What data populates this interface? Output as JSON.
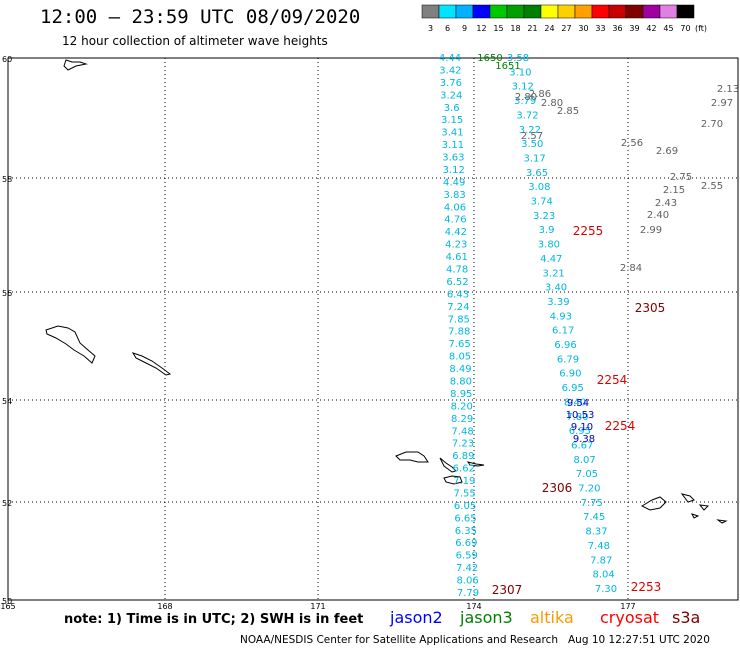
{
  "title": "12:00 – 23:59 UTC 08/09/2020",
  "subtitle": "12 hour collection of altimeter wave heights",
  "legend": {
    "values": [
      "3",
      "6",
      "9",
      "12",
      "15",
      "18",
      "21",
      "24",
      "27",
      "30",
      "33",
      "36",
      "39",
      "42",
      "45",
      "70"
    ],
    "unit": "(ft)",
    "colors": [
      "#808080",
      "#00e5ff",
      "#00b2ff",
      "#0000ff",
      "#00c800",
      "#00a000",
      "#008000",
      "#ffff00",
      "#ffd000",
      "#ffa000",
      "#ff0000",
      "#c80000",
      "#800000",
      "#a000a0",
      "#e080e0",
      "#000000"
    ]
  },
  "axes": {
    "lat_labels": [
      "60",
      "58",
      "56",
      "54",
      "52",
      "50"
    ],
    "lon_labels": [
      "165",
      "168",
      "171",
      "174",
      "177"
    ]
  },
  "tracks": {
    "cyan_left": [
      "4.44",
      "3.42",
      "3.76",
      "3.24",
      "3.6",
      "3.15",
      "3.41",
      "3.11",
      "3.63",
      "3.12",
      "4.49",
      "3.83",
      "4.06",
      "4.76",
      "4.42",
      "4.23",
      "4.61",
      "4.78",
      "6.52",
      "6.43",
      "7.24",
      "7.85",
      "7.88",
      "7.65",
      "8.05",
      "8.49",
      "8.80",
      "8.95",
      "8.20",
      "8.29",
      "7.48",
      "7.23",
      "6.89",
      "6.62",
      "7.19",
      "7.55",
      "6.05",
      "6.65",
      "6.35",
      "6.69",
      "6.59",
      "7.42",
      "8.06",
      "7.79"
    ],
    "cyan_right": [
      "3.58",
      "3.10",
      "3.12",
      "3.79",
      "3.72",
      "3.22",
      "3.50",
      "3.17",
      "3.65",
      "3.08",
      "3.74",
      "3.23",
      "3.9",
      "3.80",
      "4.47",
      "3.21",
      "3.40",
      "3.39",
      "4.93",
      "6.17",
      "6.96",
      "6.79",
      "6.90",
      "6.95",
      "8.40",
      "7.80",
      "6.95",
      "6.67",
      "8.07",
      "7.05",
      "7.20",
      "7.75",
      "7.45",
      "8.37",
      "7.48",
      "7.87",
      "8.04",
      "7.30"
    ],
    "blue": [
      "9.54",
      "10.53",
      "9.10",
      "9.38"
    ],
    "gray": [
      "2.80",
      "2.86",
      "2.80",
      "2.85",
      "2.57",
      "2.56",
      "2.69",
      "2.75",
      "2.55",
      "2.43",
      "2.15",
      "2.40",
      "2.99",
      "2.84",
      "2.97",
      "2.70",
      "2.13"
    ],
    "green": [
      "1650",
      "1651"
    ],
    "time_labels": [
      {
        "text": "2255",
        "color": "#e00000"
      },
      {
        "text": "2305",
        "color": "#800000"
      },
      {
        "text": "2254",
        "color": "#e00000"
      },
      {
        "text": "2254",
        "color": "#e00000"
      },
      {
        "text": "2306",
        "color": "#800000"
      },
      {
        "text": "2307",
        "color": "#800000"
      },
      {
        "text": "2253",
        "color": "#e00000"
      }
    ]
  },
  "note": "note: 1) Time is in UTC; 2) SWH is in feet",
  "satellites": [
    {
      "name": "jason2",
      "color": "#0000ff"
    },
    {
      "name": "jason3",
      "color": "#008000"
    },
    {
      "name": "altika",
      "color": "#ff9900"
    },
    {
      "name": "cryosat",
      "color": "#ff0000"
    },
    {
      "name": "s3a",
      "color": "#800000"
    }
  ],
  "footer": "NOAA/NESDIS Center for Satellite Applications and Research",
  "timestamp": "Aug 10 12:27:51 UTC 2020"
}
